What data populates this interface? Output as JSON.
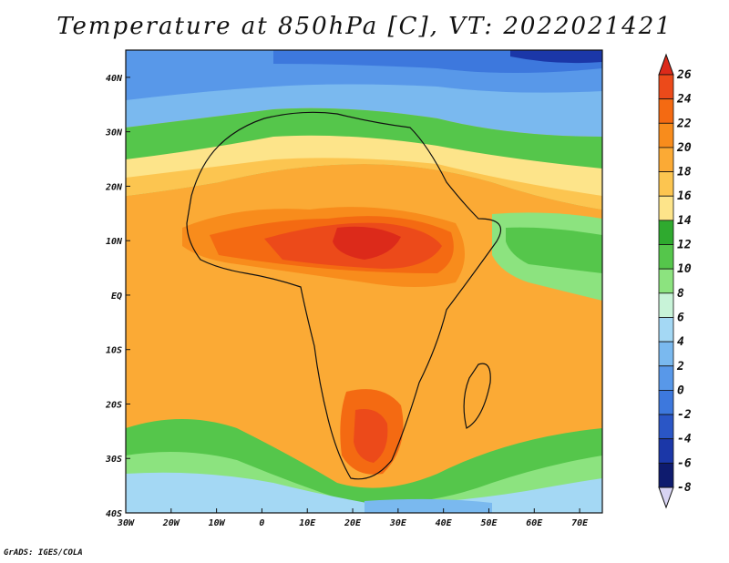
{
  "title": "Temperature at 850hPa [C], VT: 2022021421",
  "credit": "GrADS: IGES/COLA",
  "map": {
    "lon_range": [
      -30,
      75
    ],
    "lat_range": [
      -40,
      45
    ],
    "lon_ticks": [
      "30W",
      "20W",
      "10W",
      "0",
      "10E",
      "20E",
      "30E",
      "40E",
      "50E",
      "60E",
      "70E"
    ],
    "lat_ticks": [
      "40N",
      "30N",
      "20N",
      "10N",
      "EQ",
      "10S",
      "20S",
      "30S",
      "40S"
    ]
  },
  "colorbar": {
    "levels": [
      "26",
      "24",
      "22",
      "20",
      "18",
      "16",
      "14",
      "12",
      "10",
      "8",
      "6",
      "4",
      "2",
      "0",
      "-2",
      "-4",
      "-6",
      "-8"
    ],
    "colors": [
      "#dc2a1a",
      "#ec4a1a",
      "#f46a12",
      "#f88c1c",
      "#fbaa35",
      "#fcc550",
      "#fde48a",
      "#2faa2f",
      "#55c64b",
      "#8ce37f",
      "#c8f3d8",
      "#a4d8f4",
      "#7ab9ef",
      "#5898e9",
      "#3d78dd",
      "#2a56c6",
      "#1b37a8",
      "#0e1b6e",
      "#d8d4f3"
    ]
  }
}
